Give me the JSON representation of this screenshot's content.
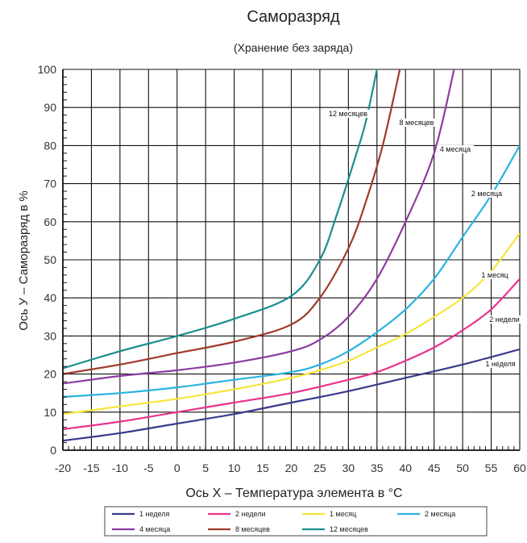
{
  "chart_data": {
    "type": "line",
    "title": "Саморазряд",
    "subtitle": "(Хранение без заряда)",
    "xlabel": "Ось X – Температура элемента в °C",
    "ylabel": "Ось У – Саморазряд в %",
    "xlim": [
      -20,
      60
    ],
    "ylim": [
      0,
      100
    ],
    "xticks": [
      -20,
      -15,
      -10,
      -5,
      0,
      5,
      10,
      15,
      20,
      25,
      30,
      35,
      40,
      45,
      50,
      55,
      60
    ],
    "yticks": [
      0,
      10,
      20,
      30,
      40,
      50,
      60,
      70,
      80,
      90,
      100
    ],
    "grid": true,
    "legend_position": "bottom",
    "series": [
      {
        "name": "1 неделя",
        "color": "#3a3a8c",
        "line_label": "1 неделя",
        "points": [
          [
            -20,
            2.5
          ],
          [
            -10,
            4.5
          ],
          [
            0,
            7
          ],
          [
            10,
            9.5
          ],
          [
            20,
            12.5
          ],
          [
            30,
            15.5
          ],
          [
            40,
            19
          ],
          [
            50,
            22.5
          ],
          [
            60,
            26.5
          ]
        ]
      },
      {
        "name": "2 недели",
        "color": "#e8338c",
        "line_label": "2 недели",
        "points": [
          [
            -20,
            5.5
          ],
          [
            -10,
            7.5
          ],
          [
            0,
            10
          ],
          [
            10,
            12.5
          ],
          [
            20,
            15
          ],
          [
            30,
            18.5
          ],
          [
            35,
            20.5
          ],
          [
            40,
            23.5
          ],
          [
            45,
            27
          ],
          [
            50,
            31.5
          ],
          [
            55,
            37
          ],
          [
            60,
            45
          ]
        ]
      },
      {
        "name": "1 месяц",
        "color": "#f5e63a",
        "line_label": "1 месяц",
        "points": [
          [
            -20,
            9.5
          ],
          [
            -10,
            11.5
          ],
          [
            0,
            13.5
          ],
          [
            10,
            16
          ],
          [
            20,
            19
          ],
          [
            25,
            21
          ],
          [
            30,
            23.5
          ],
          [
            35,
            27
          ],
          [
            40,
            30.5
          ],
          [
            45,
            35
          ],
          [
            50,
            40
          ],
          [
            55,
            47
          ],
          [
            60,
            57
          ]
        ]
      },
      {
        "name": "2 месяца",
        "color": "#2ab4e0",
        "line_label": "2 месяца",
        "points": [
          [
            -20,
            14
          ],
          [
            -10,
            15
          ],
          [
            0,
            16.5
          ],
          [
            10,
            18.5
          ],
          [
            20,
            20.5
          ],
          [
            25,
            22.5
          ],
          [
            30,
            26
          ],
          [
            35,
            31
          ],
          [
            40,
            37
          ],
          [
            45,
            45
          ],
          [
            50,
            56
          ],
          [
            55,
            67
          ],
          [
            60,
            80
          ]
        ]
      },
      {
        "name": "4 месяца",
        "color": "#8e3ca0",
        "line_label": "4 месяца",
        "points": [
          [
            -20,
            17.5
          ],
          [
            -10,
            19.5
          ],
          [
            0,
            21
          ],
          [
            10,
            23
          ],
          [
            20,
            26
          ],
          [
            25,
            29
          ],
          [
            30,
            35
          ],
          [
            35,
            45
          ],
          [
            40,
            60
          ],
          [
            45,
            78
          ],
          [
            48.5,
            100
          ]
        ]
      },
      {
        "name": "8 месяцев",
        "color": "#a03a28",
        "line_label": "8 месяцев",
        "points": [
          [
            -20,
            20
          ],
          [
            -10,
            22.5
          ],
          [
            0,
            25.5
          ],
          [
            10,
            28.5
          ],
          [
            20,
            33
          ],
          [
            25,
            40
          ],
          [
            30,
            53
          ],
          [
            33,
            65
          ],
          [
            36,
            80
          ],
          [
            39,
            100
          ]
        ]
      },
      {
        "name": "12 месяцев",
        "color": "#1b8f8f",
        "line_label": "12 месяцев",
        "points": [
          [
            -20,
            21.5
          ],
          [
            -10,
            26
          ],
          [
            0,
            30
          ],
          [
            10,
            34.5
          ],
          [
            20,
            40.5
          ],
          [
            25,
            50
          ],
          [
            28,
            62
          ],
          [
            31,
            76
          ],
          [
            33,
            86
          ],
          [
            35,
            100
          ]
        ]
      }
    ]
  }
}
